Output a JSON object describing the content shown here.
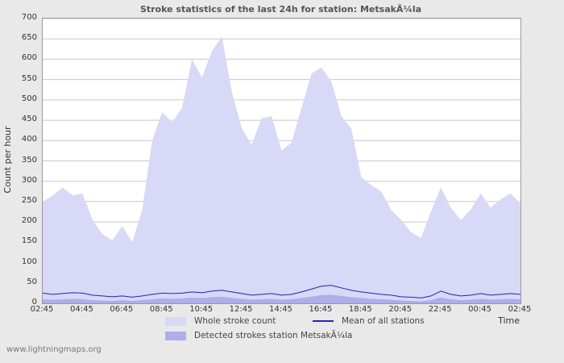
{
  "watermark": "www.lightningmaps.org",
  "chart_data": {
    "type": "area",
    "title": "Stroke statistics of the last 24h for station: MetsakÃ¼la",
    "xlabel": "Time",
    "ylabel": "Count per hour",
    "ylim": [
      0,
      700
    ],
    "y_tick_step": 50,
    "grid": true,
    "legend_position": "bottom",
    "x_tick_labels": [
      "02:45",
      "04:45",
      "06:45",
      "08:45",
      "10:45",
      "12:45",
      "14:45",
      "16:45",
      "18:45",
      "20:45",
      "22:45",
      "00:45",
      "02:45"
    ],
    "sample_interval_minutes": 30,
    "legend": [
      {
        "label": "Whole stroke count",
        "type": "area",
        "color": "#d8d8f7"
      },
      {
        "label": "Mean of all stations",
        "type": "line",
        "color": "#2323bb"
      },
      {
        "label": "Detected strokes station MetsakÃ¼la",
        "type": "area",
        "color": "#aeaeea"
      }
    ],
    "series": [
      {
        "name": "Whole stroke count",
        "type": "area",
        "color": "#d8d8f7",
        "values": [
          250,
          265,
          285,
          265,
          270,
          205,
          170,
          155,
          190,
          150,
          230,
          400,
          470,
          445,
          480,
          600,
          555,
          620,
          655,
          520,
          430,
          390,
          455,
          460,
          375,
          395,
          480,
          565,
          580,
          545,
          460,
          430,
          310,
          290,
          275,
          230,
          205,
          175,
          160,
          225,
          285,
          235,
          205,
          230,
          270,
          235,
          255,
          270,
          245
        ]
      },
      {
        "name": "Detected strokes station MetsakÃ¼la",
        "type": "area",
        "color": "#aeaeea",
        "values": [
          10,
          9,
          10,
          11,
          10,
          8,
          7,
          6,
          8,
          6,
          8,
          10,
          12,
          11,
          12,
          14,
          13,
          15,
          16,
          13,
          11,
          9,
          10,
          11,
          9,
          10,
          13,
          16,
          20,
          21,
          18,
          15,
          13,
          11,
          10,
          9,
          7,
          6,
          5,
          8,
          14,
          10,
          8,
          9,
          11,
          9,
          10,
          11,
          10
        ]
      },
      {
        "name": "Mean of all stations",
        "type": "line",
        "color": "#2323bb",
        "values": [
          25,
          22,
          24,
          26,
          25,
          20,
          18,
          16,
          18,
          15,
          18,
          22,
          25,
          24,
          25,
          28,
          26,
          30,
          32,
          28,
          24,
          20,
          22,
          24,
          20,
          22,
          28,
          35,
          42,
          44,
          38,
          32,
          28,
          25,
          22,
          20,
          16,
          15,
          13,
          18,
          30,
          22,
          18,
          20,
          24,
          20,
          22,
          24,
          22
        ]
      }
    ]
  }
}
